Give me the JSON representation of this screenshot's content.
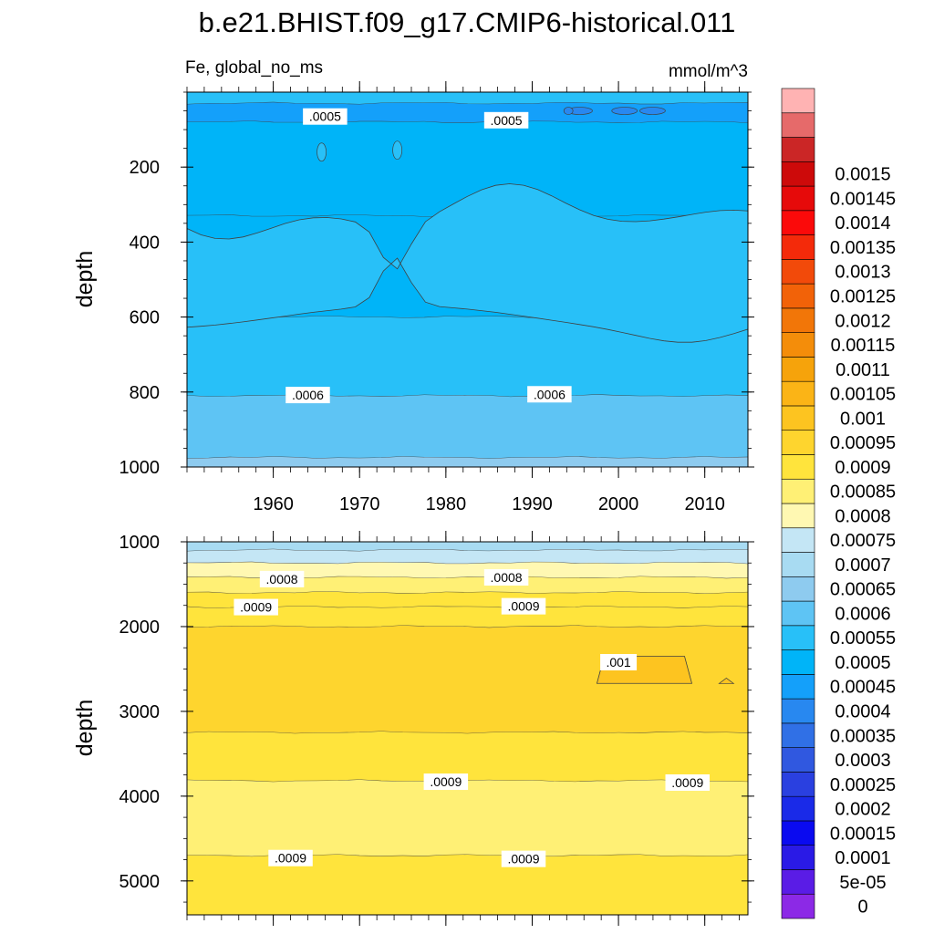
{
  "title": "b.e21.BHIST.f09_g17.CMIP6-historical.011",
  "subtitle_left": "Fe, global_no_ms",
  "subtitle_right": "mmol/m^3",
  "colors": {
    "palette": [
      "#8c29e6",
      "#5a1ce6",
      "#2a1ae6",
      "#0a0af0",
      "#1a2ae8",
      "#2a40e0",
      "#3058e0",
      "#3070e6",
      "#2888f0",
      "#14a0fa",
      "#00b4f8",
      "#28c0f8",
      "#5ec4f4",
      "#8ecbef",
      "#a8dbf2",
      "#c4e6f5",
      "#fff8b2",
      "#fff075",
      "#ffe43c",
      "#fed52e",
      "#fdc420",
      "#fbb416",
      "#f6a30b",
      "#f48d0a",
      "#f27608",
      "#f26208",
      "#f24a0a",
      "#f42a0a",
      "#fb0a0a",
      "#e60a0a",
      "#cd0a0a",
      "#cb2626",
      "#e66a6a",
      "#ffb3b3"
    ],
    "line": "#404040"
  },
  "colorbar": {
    "labels": [
      "0.0015",
      "0.00145",
      "0.0014",
      "0.00135",
      "0.0013",
      "0.00125",
      "0.0012",
      "0.00115",
      "0.0011",
      "0.00105",
      "0.001",
      "0.00095",
      "0.0009",
      "0.00085",
      "0.0008",
      "0.00075",
      "0.0007",
      "0.00065",
      "0.0006",
      "0.00055",
      "0.0005",
      "0.00045",
      "0.0004",
      "0.00035",
      "0.0003",
      "0.00025",
      "0.0002",
      "0.00015",
      "0.0001",
      "5e-05",
      "0"
    ]
  },
  "chart_data": [
    {
      "type": "heatmap",
      "panel": "upper",
      "ylabel": "depth",
      "x_range": [
        1950,
        2015
      ],
      "y_range": [
        0,
        1000
      ],
      "y_reversed": true,
      "yticks": [
        200,
        400,
        600,
        800,
        1000
      ],
      "xticks": [
        1960,
        1970,
        1980,
        1990,
        2000,
        2010
      ],
      "xtick_labels": [
        "1960",
        "1970",
        "1980",
        "1990",
        "2000",
        "2010"
      ],
      "bands": [
        {
          "top": 0,
          "bottom": 30,
          "value": 0.00055
        },
        {
          "top": 30,
          "bottom": 80,
          "value": 0.00045
        },
        {
          "top": 80,
          "bottom": 330,
          "value": 0.0005
        },
        {
          "top": 330,
          "bottom": 600,
          "value": 0.0005
        },
        {
          "top": 600,
          "bottom": 810,
          "value": 0.00055
        },
        {
          "top": 810,
          "bottom": 975,
          "value": 0.0006
        },
        {
          "top": 975,
          "bottom": 1000,
          "value": 0.00065
        }
      ],
      "contour_labels": [
        {
          "text": ".0005",
          "x": 1966,
          "y": 65
        },
        {
          "text": ".0005",
          "x": 1987,
          "y": 75
        },
        {
          "text": ".0006",
          "x": 1964,
          "y": 808
        },
        {
          "text": ".0006",
          "x": 1992,
          "y": 806
        }
      ]
    },
    {
      "type": "heatmap",
      "panel": "lower",
      "ylabel": "depth",
      "x_range": [
        1950,
        2015
      ],
      "y_range": [
        1000,
        5400
      ],
      "y_reversed": true,
      "yticks": [
        1000,
        2000,
        3000,
        4000,
        5000
      ],
      "xticks": [
        1960,
        1970,
        1980,
        1990,
        2000,
        2010
      ],
      "bands": [
        {
          "top": 1000,
          "bottom": 1100,
          "value": 0.0007
        },
        {
          "top": 1100,
          "bottom": 1250,
          "value": 0.00075
        },
        {
          "top": 1250,
          "bottom": 1420,
          "value": 0.0008
        },
        {
          "top": 1420,
          "bottom": 1600,
          "value": 0.00085
        },
        {
          "top": 1600,
          "bottom": 1770,
          "value": 0.0009
        },
        {
          "top": 1770,
          "bottom": 2000,
          "value": 0.0009
        },
        {
          "top": 2000,
          "bottom": 3250,
          "value": 0.00095
        },
        {
          "top": 3250,
          "bottom": 3820,
          "value": 0.0009
        },
        {
          "top": 3820,
          "bottom": 4700,
          "value": 0.00085
        },
        {
          "top": 4700,
          "bottom": 5400,
          "value": 0.0009
        }
      ],
      "contour_labels": [
        {
          "text": ".0008",
          "x": 1961,
          "y": 1440
        },
        {
          "text": ".0008",
          "x": 1987,
          "y": 1420
        },
        {
          "text": ".0009",
          "x": 1958,
          "y": 1770
        },
        {
          "text": ".0009",
          "x": 1989,
          "y": 1760
        },
        {
          "text": ".001",
          "x": 2000,
          "y": 2420
        },
        {
          "text": ".0009",
          "x": 1980,
          "y": 3830
        },
        {
          "text": ".0009",
          "x": 2008,
          "y": 3840
        },
        {
          "text": ".0009",
          "x": 1962,
          "y": 4730
        },
        {
          "text": ".0009",
          "x": 1989,
          "y": 4740
        }
      ]
    }
  ]
}
